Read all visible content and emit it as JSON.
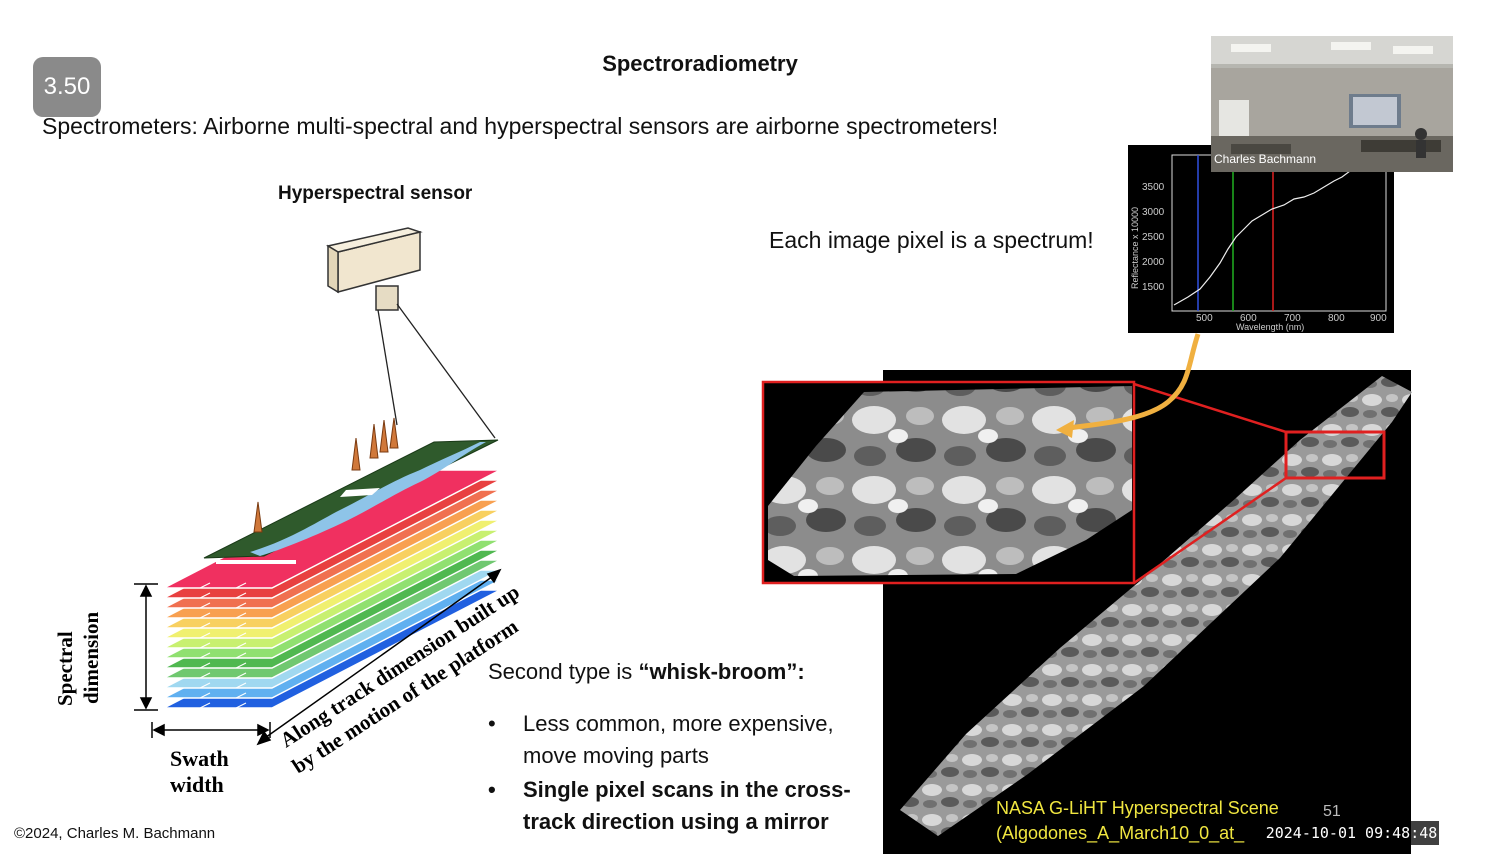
{
  "slide": {
    "badge": "3.50",
    "title": "Spectroradiometry",
    "subtitle": "Spectrometers:  Airborne multi-spectral and hyperspectral sensors are airborne spectrometers!",
    "slide_number": "51",
    "copyright": "©2024, Charles M. Bachmann"
  },
  "diagram": {
    "heading": "Hyperspectral sensor",
    "spectral_label_1": "Spectral",
    "spectral_label_2": "dimension",
    "swath_label_1": "Swath",
    "swath_label_2": "width",
    "along_track_1": "Along track dimension built up",
    "along_track_2": "by the motion of the platform"
  },
  "spectrum": {
    "note": "Each image pixel is a spectrum!",
    "ylabel": "Reflectance x 10000",
    "xlabel": "Wavelength (nm)",
    "yticks": [
      "3500",
      "3000",
      "2500",
      "2000",
      "1500"
    ],
    "xticks": [
      "500",
      "600",
      "700",
      "800",
      "900"
    ],
    "band_colors": [
      "#3050e0",
      "#20b020",
      "#e02020"
    ]
  },
  "text_block": {
    "intro_plain": "Second type is ",
    "intro_bold": "“whisk-broom”:",
    "bullet_1": "Less common, more expensive, move moving parts",
    "bullet_2": "Single pixel scans in the cross-track direction using a mirror"
  },
  "scene": {
    "caption_line_1": "NASA G-LiHT Hyperspectral Scene",
    "caption_line_2": "(Algodones_A_March10_0_at_",
    "highlight_color": "#e02020",
    "arrow_color": "#f0b040"
  },
  "video": {
    "presenter_name": "Charles Bachmann",
    "timestamp": "2024-10-01  09:48:48"
  }
}
